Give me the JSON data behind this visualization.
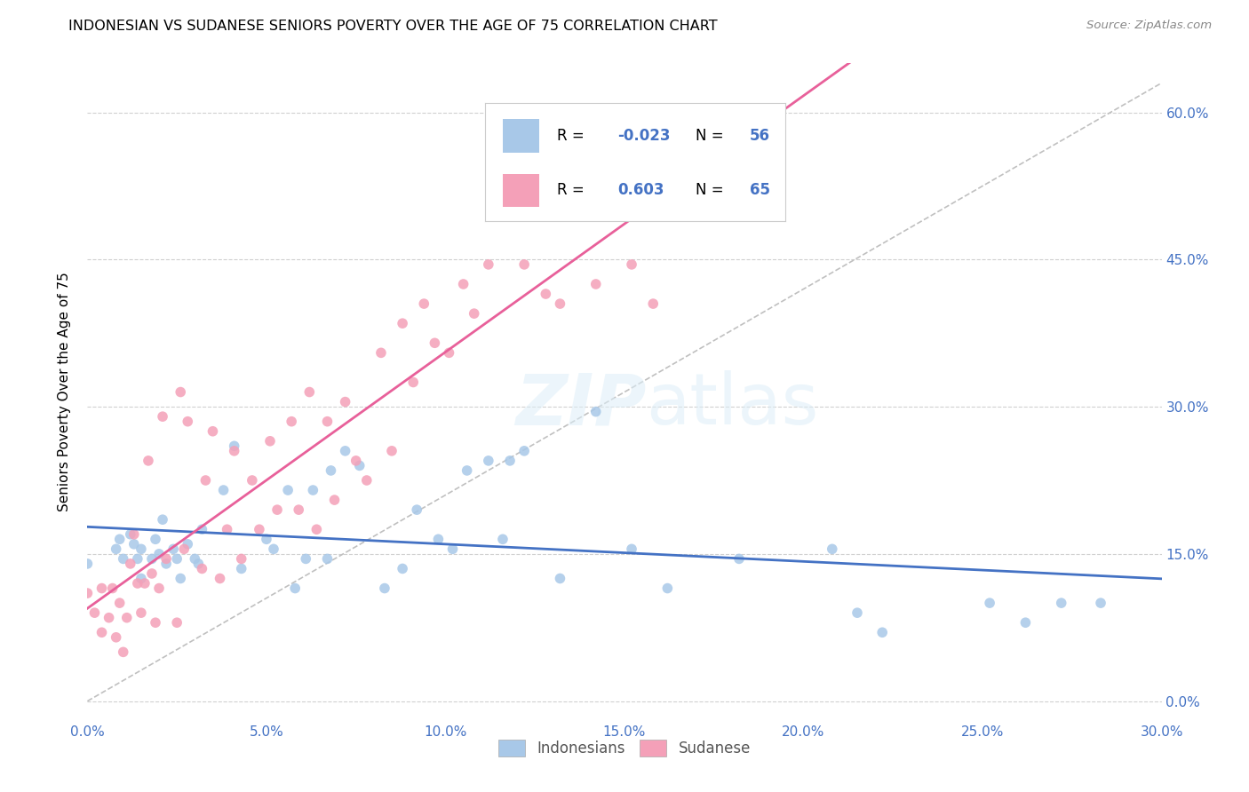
{
  "title": "INDONESIAN VS SUDANESE SENIORS POVERTY OVER THE AGE OF 75 CORRELATION CHART",
  "source": "Source: ZipAtlas.com",
  "xlim": [
    0.0,
    0.3
  ],
  "ylim": [
    -0.02,
    0.65
  ],
  "indonesian_color": "#a8c8e8",
  "sudanese_color": "#f4a0b8",
  "indonesian_line_color": "#4472c4",
  "sudanese_line_color": "#e8609a",
  "trend_line_color": "#c8c8c8",
  "R_indonesian": -0.023,
  "N_indonesian": 56,
  "R_sudanese": 0.603,
  "N_sudanese": 65,
  "indonesian_x": [
    0.0,
    0.008,
    0.009,
    0.01,
    0.012,
    0.013,
    0.014,
    0.015,
    0.015,
    0.018,
    0.019,
    0.02,
    0.021,
    0.022,
    0.024,
    0.025,
    0.026,
    0.028,
    0.03,
    0.031,
    0.032,
    0.038,
    0.041,
    0.043,
    0.05,
    0.052,
    0.056,
    0.058,
    0.061,
    0.063,
    0.067,
    0.068,
    0.072,
    0.076,
    0.083,
    0.088,
    0.092,
    0.098,
    0.102,
    0.106,
    0.112,
    0.116,
    0.118,
    0.122,
    0.132,
    0.142,
    0.152,
    0.162,
    0.182,
    0.208,
    0.215,
    0.222,
    0.252,
    0.262,
    0.272,
    0.283
  ],
  "indonesian_y": [
    0.14,
    0.155,
    0.165,
    0.145,
    0.17,
    0.16,
    0.145,
    0.125,
    0.155,
    0.145,
    0.165,
    0.15,
    0.185,
    0.14,
    0.155,
    0.145,
    0.125,
    0.16,
    0.145,
    0.14,
    0.175,
    0.215,
    0.26,
    0.135,
    0.165,
    0.155,
    0.215,
    0.115,
    0.145,
    0.215,
    0.145,
    0.235,
    0.255,
    0.24,
    0.115,
    0.135,
    0.195,
    0.165,
    0.155,
    0.235,
    0.245,
    0.165,
    0.245,
    0.255,
    0.125,
    0.295,
    0.155,
    0.115,
    0.145,
    0.155,
    0.09,
    0.07,
    0.1,
    0.08,
    0.1,
    0.1
  ],
  "sudanese_x": [
    0.0,
    0.002,
    0.004,
    0.004,
    0.006,
    0.007,
    0.008,
    0.009,
    0.01,
    0.011,
    0.012,
    0.013,
    0.014,
    0.015,
    0.016,
    0.017,
    0.018,
    0.019,
    0.02,
    0.021,
    0.022,
    0.025,
    0.026,
    0.027,
    0.028,
    0.032,
    0.033,
    0.035,
    0.037,
    0.039,
    0.041,
    0.043,
    0.046,
    0.048,
    0.051,
    0.053,
    0.057,
    0.059,
    0.062,
    0.064,
    0.067,
    0.069,
    0.072,
    0.075,
    0.078,
    0.082,
    0.085,
    0.088,
    0.091,
    0.094,
    0.097,
    0.101,
    0.105,
    0.108,
    0.112,
    0.122,
    0.128,
    0.132,
    0.142,
    0.148,
    0.152,
    0.158,
    0.162,
    0.178,
    0.185
  ],
  "sudanese_y": [
    0.11,
    0.09,
    0.07,
    0.115,
    0.085,
    0.115,
    0.065,
    0.1,
    0.05,
    0.085,
    0.14,
    0.17,
    0.12,
    0.09,
    0.12,
    0.245,
    0.13,
    0.08,
    0.115,
    0.29,
    0.145,
    0.08,
    0.315,
    0.155,
    0.285,
    0.135,
    0.225,
    0.275,
    0.125,
    0.175,
    0.255,
    0.145,
    0.225,
    0.175,
    0.265,
    0.195,
    0.285,
    0.195,
    0.315,
    0.175,
    0.285,
    0.205,
    0.305,
    0.245,
    0.225,
    0.355,
    0.255,
    0.385,
    0.325,
    0.405,
    0.365,
    0.355,
    0.425,
    0.395,
    0.445,
    0.445,
    0.415,
    0.405,
    0.425,
    0.555,
    0.445,
    0.405,
    0.545,
    0.555,
    0.595
  ]
}
